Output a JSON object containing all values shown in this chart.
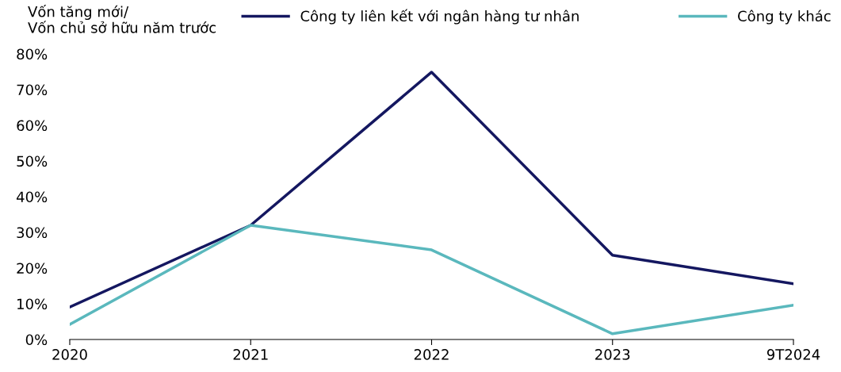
{
  "chart_data": {
    "type": "line",
    "ylabel": "Vốn tăng mới/\nVốn chủ sở hữu năm trước",
    "categories": [
      "2020",
      "2021",
      "2022",
      "2023",
      "9T2024"
    ],
    "series": [
      {
        "name": "Công ty liên kết với ngân hàng tư nhân",
        "color": "#141760",
        "values": [
          9.1,
          32,
          74.9,
          23.6,
          15.6
        ]
      },
      {
        "name": "Công ty khác",
        "color": "#5ab8bd",
        "values": [
          4.2,
          32,
          25.1,
          1.6,
          9.6
        ]
      }
    ],
    "ylim": [
      0,
      80
    ],
    "yticks": [
      {
        "value": 0,
        "label": "0%"
      },
      {
        "value": 10,
        "label": "10%"
      },
      {
        "value": 20,
        "label": "20%"
      },
      {
        "value": 30,
        "label": "30%"
      },
      {
        "value": 40,
        "label": "40%"
      },
      {
        "value": 50,
        "label": "50%"
      },
      {
        "value": 60,
        "label": "60%"
      },
      {
        "value": 70,
        "label": "70%"
      },
      {
        "value": 80,
        "label": "80%"
      }
    ],
    "grid": false,
    "legend": "top",
    "marker": "none",
    "line_style": "solid"
  }
}
